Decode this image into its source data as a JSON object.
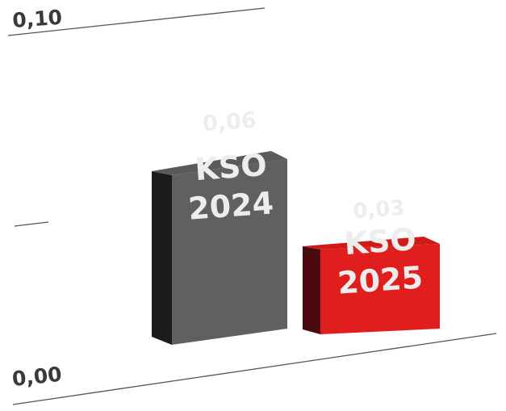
{
  "chart_data": {
    "type": "bar",
    "categories": [
      "KSO 2024",
      "KSO 2025"
    ],
    "values": [
      0.06,
      0.03
    ],
    "value_labels": [
      "0,06",
      "0,03"
    ],
    "bar_labels": [
      [
        "KSO",
        "2024"
      ],
      [
        "KSO",
        "2025"
      ]
    ],
    "ylim": [
      0,
      0.1
    ],
    "y_ticks": [
      "0,00",
      "0,10"
    ],
    "grid": true,
    "colors": {
      "bar_2024_front": "#606060",
      "bar_2024_side": "#1b1b1b",
      "bar_2024_top": "#5a5a5a",
      "bar_2025_front": "#e01e1e",
      "bar_2025_side": "#4a0a0f",
      "bar_2025_top": "#cf1a1a",
      "label_text": "#ededed",
      "axis_text": "#3a3a3a",
      "gridline": "#555555"
    }
  }
}
